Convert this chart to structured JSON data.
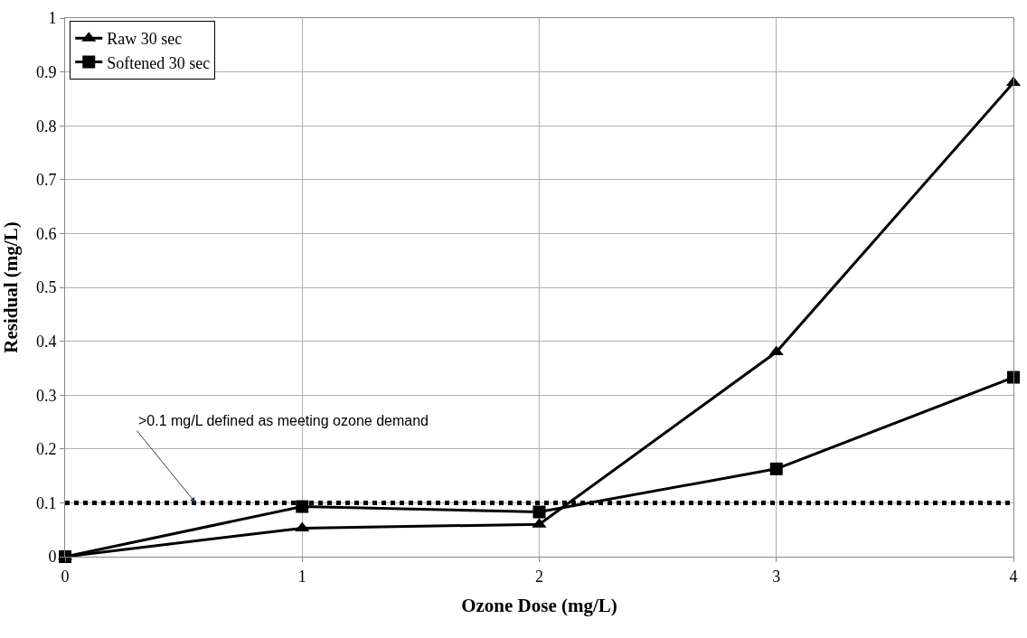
{
  "chart_data": {
    "type": "line",
    "xlabel": "Ozone Dose (mg/L)",
    "ylabel": "Residual (mg/L)",
    "x": [
      0,
      1,
      2,
      3,
      4
    ],
    "series": [
      {
        "name": "Raw 30 sec",
        "color": "#000000",
        "marker": "triangle",
        "values": [
          0,
          0.053,
          0.06,
          0.38,
          0.88
        ]
      },
      {
        "name": "Softened 30 sec",
        "color": "#000000",
        "marker": "square",
        "values": [
          0,
          0.093,
          0.083,
          0.163,
          0.333
        ]
      }
    ],
    "xlim": [
      0,
      4
    ],
    "xticks": [
      0,
      1,
      2,
      3,
      4
    ],
    "ylim": [
      0,
      1
    ],
    "yticks": [
      0,
      0.1,
      0.2,
      0.3,
      0.4,
      0.5,
      0.6,
      0.7,
      0.8,
      0.9,
      1
    ],
    "ref_lines": [
      {
        "axis": "y",
        "value": 0.1,
        "color": "#000000",
        "line_style": "dotted"
      }
    ],
    "annotations": [
      {
        "text": ">0.1 mg/L defined as meeting ozone demand",
        "x": 0.55,
        "y": 0.1
      }
    ],
    "grid": true,
    "legend": "top left",
    "line_style": "solid"
  }
}
